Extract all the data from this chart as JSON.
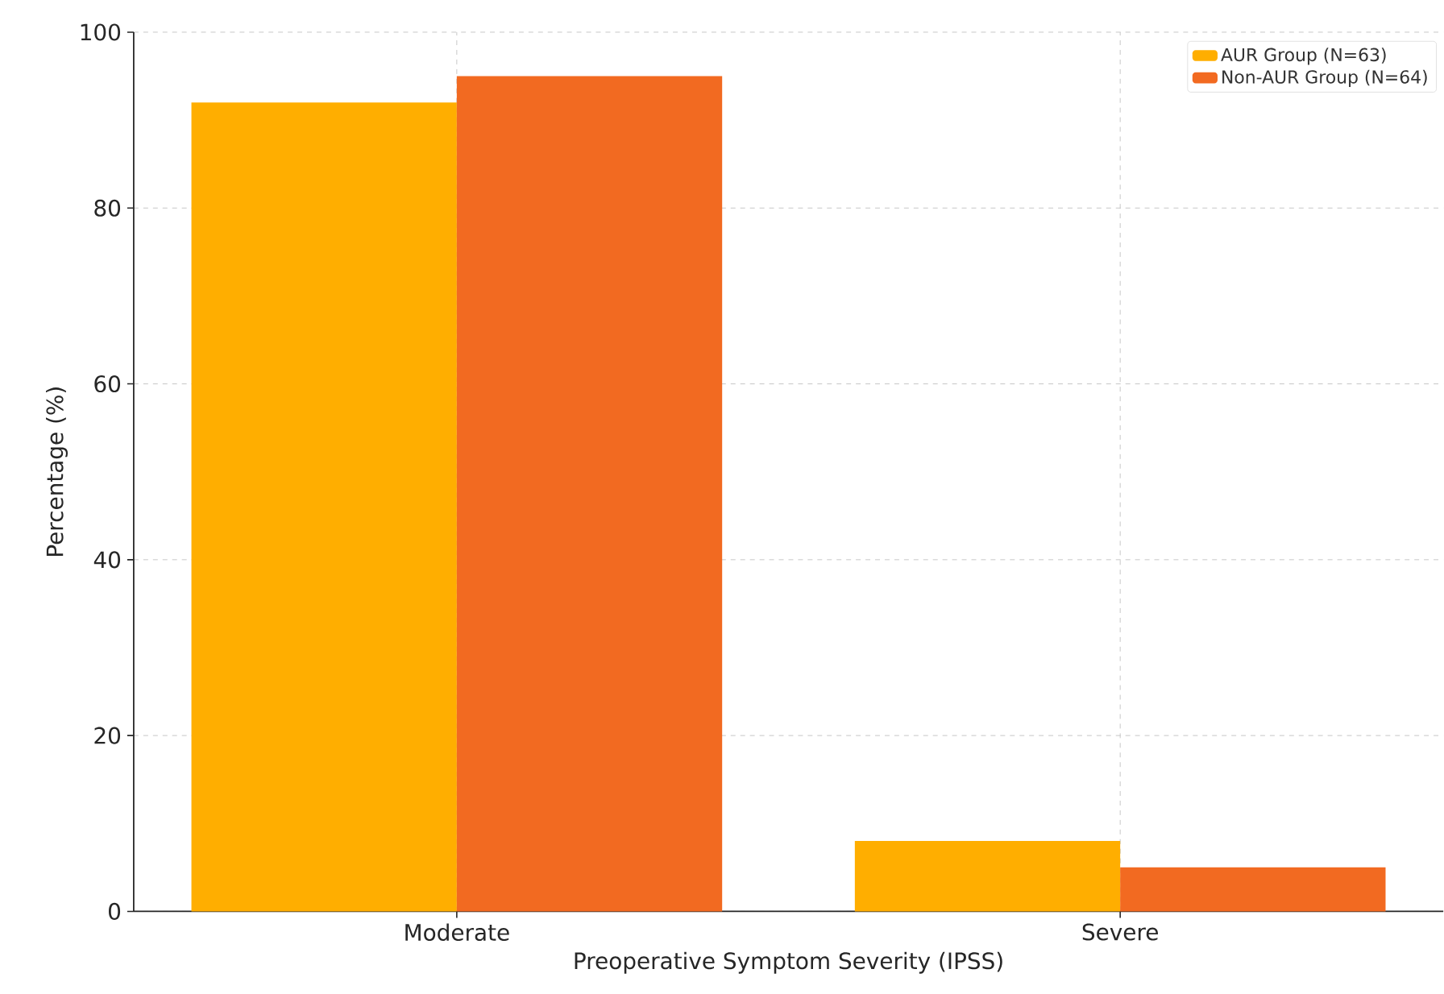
{
  "chart_data": {
    "type": "bar",
    "xlabel": "Preoperative Symptom Severity (IPSS)",
    "ylabel": "Percentage (%)",
    "categories": [
      "Moderate",
      "Severe"
    ],
    "series": [
      {
        "name": "AUR Group (N=63)",
        "color": "#ffae00",
        "values": [
          92,
          8
        ]
      },
      {
        "name": "Non-AUR Group (N=64)",
        "color": "#f26a21",
        "values": [
          95,
          5
        ]
      }
    ],
    "ylim": [
      0,
      100
    ],
    "yticks": [
      0,
      20,
      40,
      60,
      80,
      100
    ],
    "grid": true,
    "legend": "top right"
  }
}
